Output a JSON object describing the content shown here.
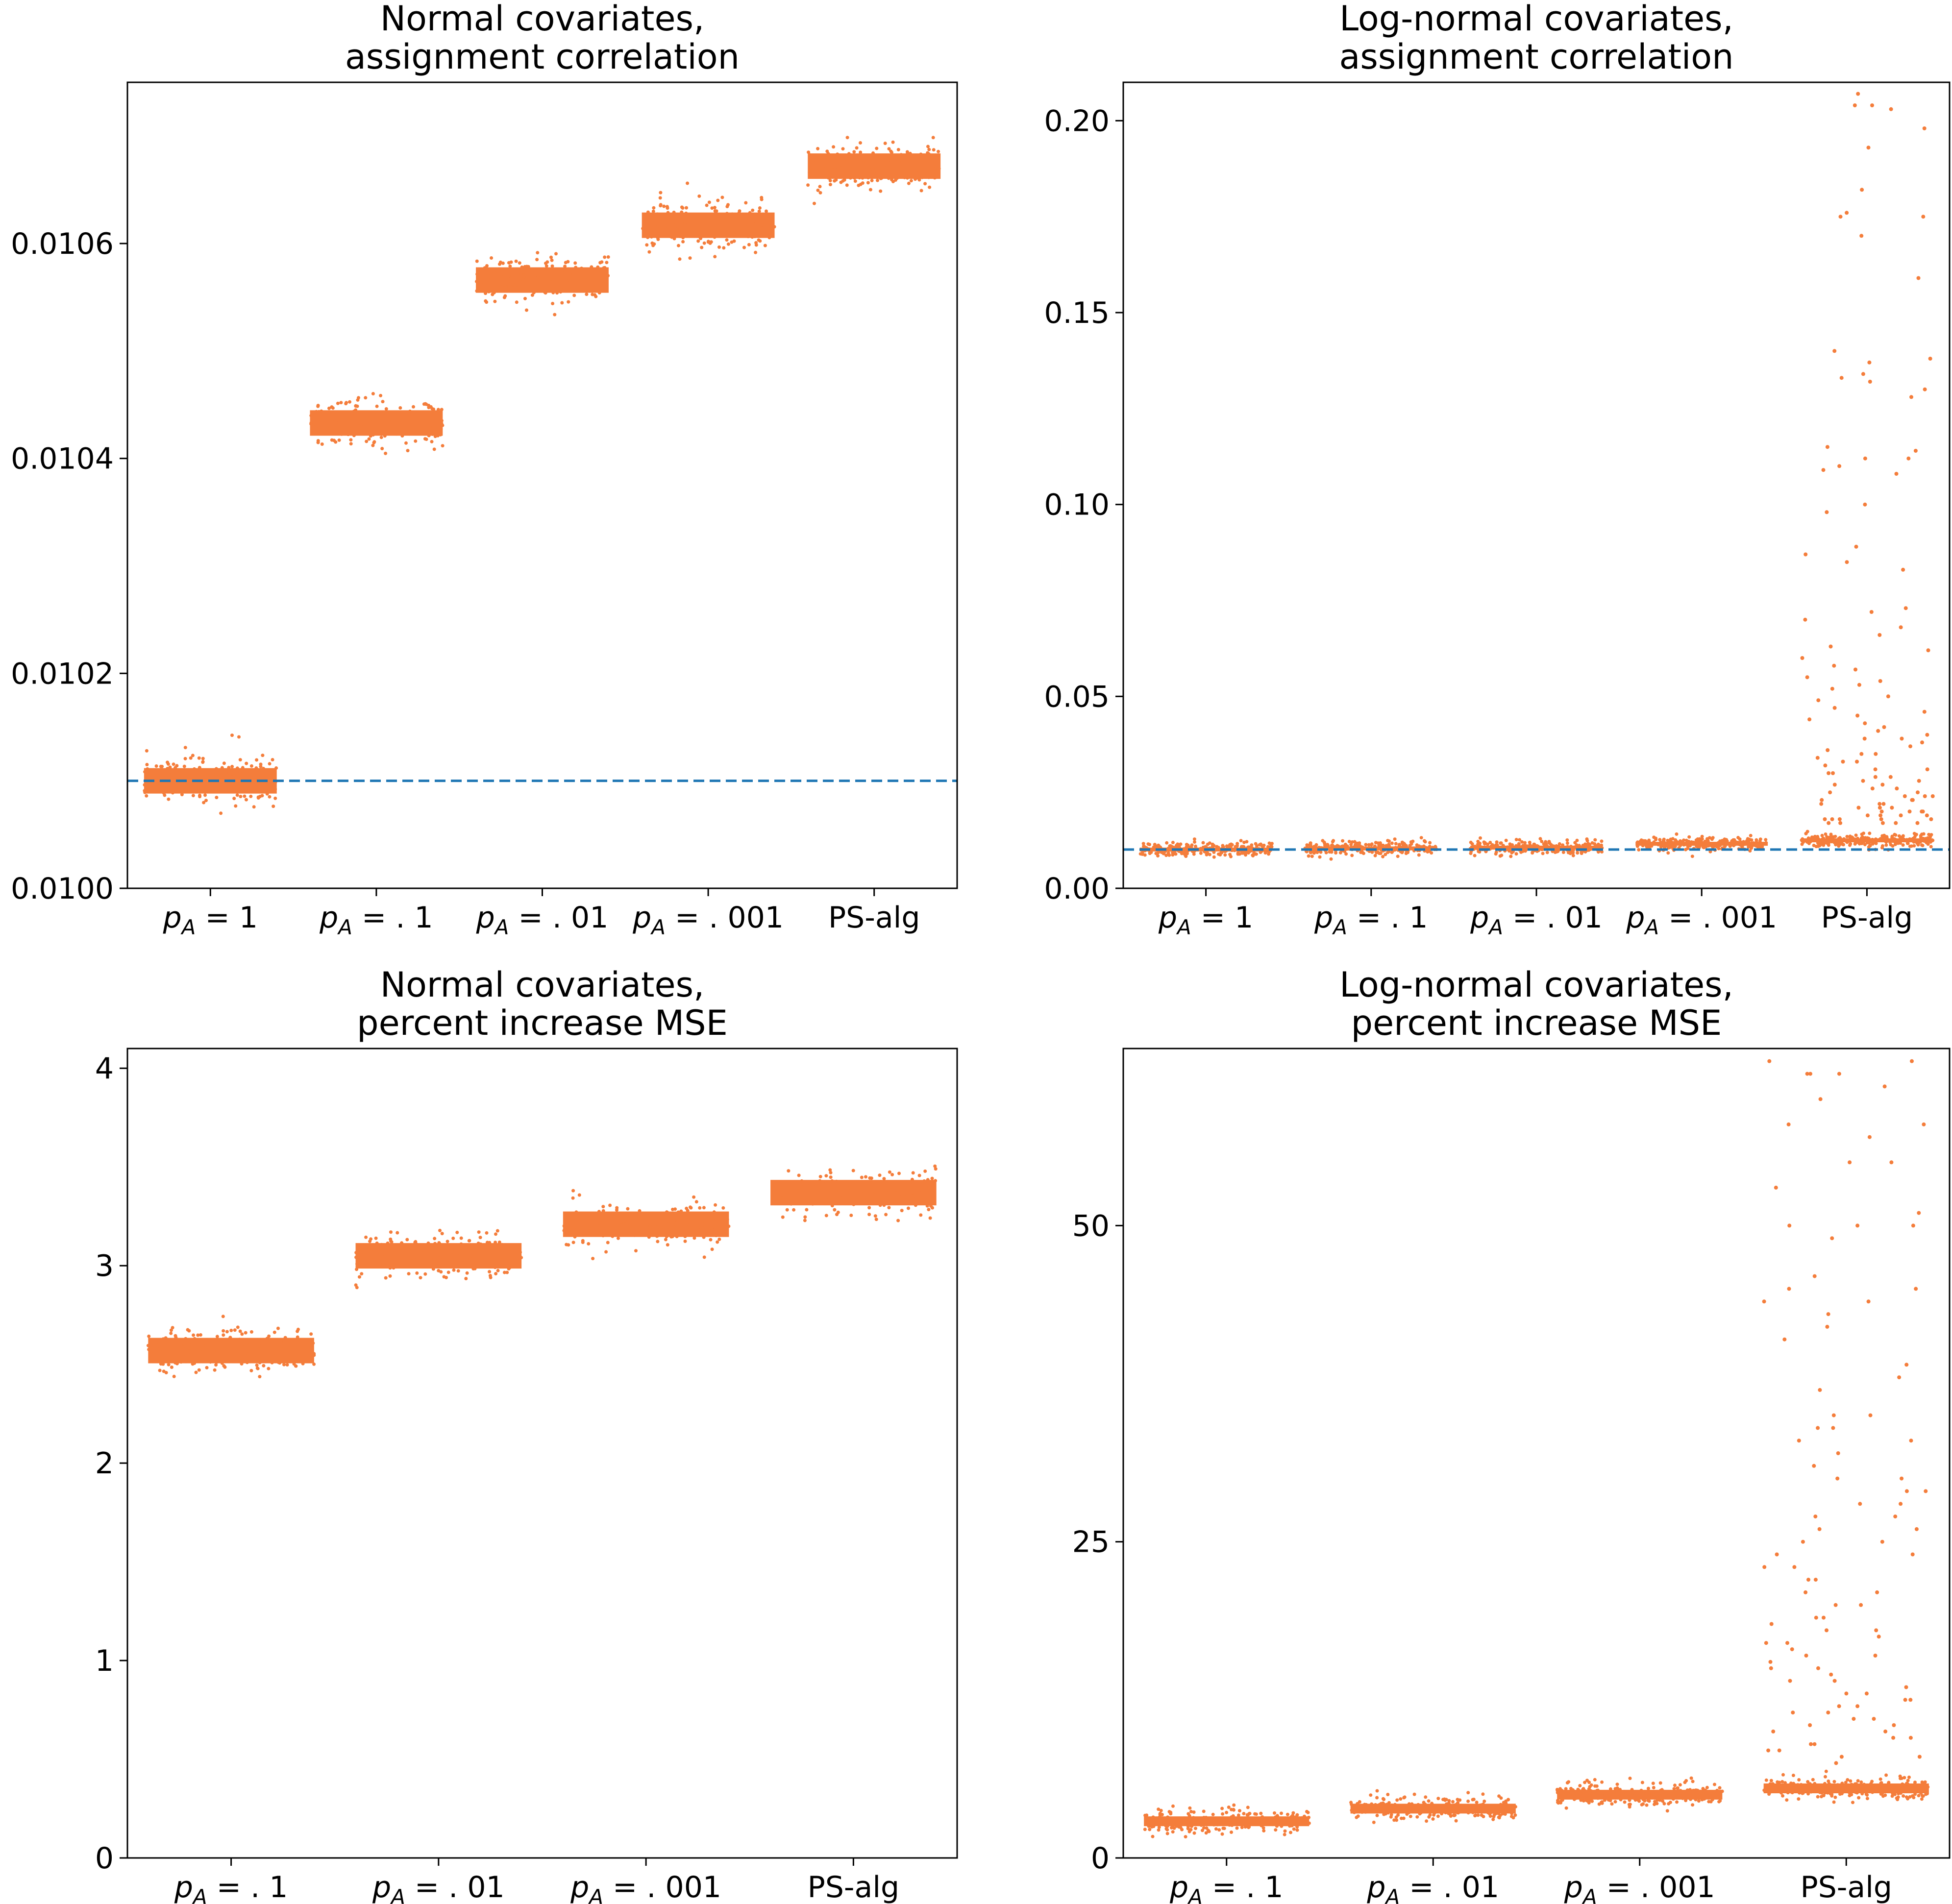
{
  "colors": {
    "points": "#f47d3b",
    "reference_line": "#1f77b4",
    "axis": "#000000"
  },
  "chart_data": [
    {
      "type": "scatter",
      "subtype": "strip",
      "title": [
        "Normal covariates,",
        "assignment correlation"
      ],
      "categories": [
        "p_A = 1",
        "p_A = .1",
        "p_A = .01",
        "p_A = .001",
        "PS-alg"
      ],
      "category_labels": [
        {
          "base": "p",
          "sub": "A",
          "rest": " = 1"
        },
        {
          "base": "p",
          "sub": "A",
          "rest": " = . 1"
        },
        {
          "base": "p",
          "sub": "A",
          "rest": " = . 01"
        },
        {
          "base": "p",
          "sub": "A",
          "rest": " = . 001"
        },
        {
          "base": "",
          "sub": "",
          "rest": "PS-alg"
        }
      ],
      "series": [
        {
          "name": "p_A = 1",
          "center": 0.0101,
          "spread": 4.5e-06,
          "outliers": []
        },
        {
          "name": "p_A = .1",
          "center": 0.010433,
          "spread": 4.5e-06,
          "outliers": []
        },
        {
          "name": "p_A = .01",
          "center": 0.010566,
          "spread": 4.5e-06,
          "outliers": []
        },
        {
          "name": "p_A = .001",
          "center": 0.010617,
          "spread": 4.5e-06,
          "outliers": []
        },
        {
          "name": "PS-alg",
          "center": 0.010672,
          "spread": 4.5e-06,
          "outliers": []
        }
      ],
      "ylim": [
        0.01,
        0.01075
      ],
      "yticks": [
        0.01,
        0.0102,
        0.0104,
        0.0106
      ],
      "ytick_labels": [
        "0.0100",
        "0.0102",
        "0.0104",
        "0.0106"
      ],
      "reference_line": 0.0101,
      "xlabel": "",
      "ylabel": ""
    },
    {
      "type": "scatter",
      "subtype": "strip",
      "title": [
        "Log-normal covariates,",
        "assignment correlation"
      ],
      "categories": [
        "p_A = 1",
        "p_A = .1",
        "p_A = .01",
        "p_A = .001",
        "PS-alg"
      ],
      "category_labels": [
        {
          "base": "p",
          "sub": "A",
          "rest": " = 1"
        },
        {
          "base": "p",
          "sub": "A",
          "rest": " = . 1"
        },
        {
          "base": "p",
          "sub": "A",
          "rest": " = . 01"
        },
        {
          "base": "p",
          "sub": "A",
          "rest": " = . 001"
        },
        {
          "base": "",
          "sub": "",
          "rest": "PS-alg"
        }
      ],
      "series": [
        {
          "name": "p_A = 1",
          "center": 0.0101,
          "spread": 0.0003,
          "outliers": []
        },
        {
          "name": "p_A = .1",
          "center": 0.0104,
          "spread": 0.0004,
          "outliers": []
        },
        {
          "name": "p_A = .01",
          "center": 0.0106,
          "spread": 0.0005,
          "outliers": []
        },
        {
          "name": "p_A = .001",
          "center": 0.0116,
          "spread": 0.0012,
          "outliers": []
        },
        {
          "name": "PS-alg",
          "center": 0.0125,
          "spread": 0.0022,
          "outliers": [
            0.204,
            0.204,
            0.203,
            0.207,
            0.198,
            0.193,
            0.182,
            0.176,
            0.175,
            0.175,
            0.17,
            0.159,
            0.14,
            0.138,
            0.134,
            0.137,
            0.133,
            0.13,
            0.132,
            0.128,
            0.115,
            0.114,
            0.112,
            0.112,
            0.11,
            0.109,
            0.108,
            0.1,
            0.098,
            0.089,
            0.087,
            0.085,
            0.083,
            0.073,
            0.072,
            0.07,
            0.068,
            0.066,
            0.063,
            0.062,
            0.06,
            0.058,
            0.057,
            0.055,
            0.054,
            0.053,
            0.052,
            0.05,
            0.049,
            0.047,
            0.046,
            0.045,
            0.044,
            0.043,
            0.042,
            0.041,
            0.04,
            0.039,
            0.039,
            0.038,
            0.037,
            0.036,
            0.035,
            0.035,
            0.034,
            0.033,
            0.033,
            0.032,
            0.031,
            0.031,
            0.03,
            0.03,
            0.029,
            0.029,
            0.028,
            0.028,
            0.027,
            0.027,
            0.026,
            0.026,
            0.025,
            0.025,
            0.024,
            0.024,
            0.024,
            0.023,
            0.023,
            0.023,
            0.022,
            0.022,
            0.022,
            0.021,
            0.021,
            0.021,
            0.02,
            0.02,
            0.02,
            0.02,
            0.019,
            0.019,
            0.019,
            0.019,
            0.018,
            0.018,
            0.018,
            0.018,
            0.018,
            0.017,
            0.017,
            0.017,
            0.017,
            0.017
          ]
        }
      ],
      "ylim": [
        0.0,
        0.21
      ],
      "yticks": [
        0.0,
        0.05,
        0.1,
        0.15,
        0.2
      ],
      "ytick_labels": [
        "0.00",
        "0.05",
        "0.10",
        "0.15",
        "0.20"
      ],
      "reference_line": 0.0101,
      "xlabel": "",
      "ylabel": ""
    },
    {
      "type": "scatter",
      "subtype": "strip",
      "title": [
        "Normal covariates,",
        "percent increase MSE"
      ],
      "categories": [
        "p_A = .1",
        "p_A = .01",
        "p_A = .001",
        "PS-alg"
      ],
      "category_labels": [
        {
          "base": "p",
          "sub": "A",
          "rest": " = . 1"
        },
        {
          "base": "p",
          "sub": "A",
          "rest": " = . 01"
        },
        {
          "base": "p",
          "sub": "A",
          "rest": " = . 001"
        },
        {
          "base": "",
          "sub": "",
          "rest": "PS-alg"
        }
      ],
      "series": [
        {
          "name": "p_A = .1",
          "center": 2.57,
          "spread": 0.025,
          "outliers": []
        },
        {
          "name": "p_A = .01",
          "center": 3.05,
          "spread": 0.025,
          "outliers": []
        },
        {
          "name": "p_A = .001",
          "center": 3.21,
          "spread": 0.025,
          "outliers": []
        },
        {
          "name": "PS-alg",
          "center": 3.37,
          "spread": 0.025,
          "outliers": []
        }
      ],
      "ylim": [
        0,
        4.1
      ],
      "yticks": [
        0,
        1,
        2,
        3,
        4
      ],
      "ytick_labels": [
        "0",
        "1",
        "2",
        "3",
        "4"
      ],
      "reference_line": null,
      "xlabel": "",
      "ylabel": ""
    },
    {
      "type": "scatter",
      "subtype": "strip",
      "title": [
        "Log-normal covariates,",
        "percent increase MSE"
      ],
      "categories": [
        "p_A = .1",
        "p_A = .01",
        "p_A = .001",
        "PS-alg"
      ],
      "category_labels": [
        {
          "base": "p",
          "sub": "A",
          "rest": " = . 1"
        },
        {
          "base": "p",
          "sub": "A",
          "rest": " = . 01"
        },
        {
          "base": "p",
          "sub": "A",
          "rest": " = . 001"
        },
        {
          "base": "",
          "sub": "",
          "rest": "PS-alg"
        }
      ],
      "series": [
        {
          "name": "p_A = .1",
          "center": 2.9,
          "spread": 0.15,
          "outliers": []
        },
        {
          "name": "p_A = .01",
          "center": 3.9,
          "spread": 0.5,
          "outliers": []
        },
        {
          "name": "p_A = .001",
          "center": 5.0,
          "spread": 1.1,
          "outliers": []
        },
        {
          "name": "PS-alg",
          "center": 5.5,
          "spread": 1.7,
          "outliers": [
            63.0,
            62.0,
            62.0,
            63.0,
            62.0,
            61.0,
            60.0,
            58.0,
            58.0,
            57.0,
            55.0,
            55.0,
            53.0,
            51.0,
            50.0,
            50.0,
            50.0,
            49.0,
            46.0,
            45.0,
            45.0,
            44.0,
            44.0,
            43.0,
            42.0,
            41.0,
            39.0,
            38.0,
            37.0,
            35.0,
            35.0,
            34.0,
            34.0,
            33.0,
            33.0,
            32.0,
            31.0,
            30.0,
            30.0,
            29.0,
            29.0,
            28.0,
            28.0,
            27.0,
            27.0,
            26.0,
            26.0,
            25.0,
            25.0,
            24.0,
            24.0,
            23.0,
            23.0,
            22.0,
            22.0,
            21.0,
            21.0,
            20.0,
            20.0,
            19.0,
            19.0,
            18.5,
            18.0,
            18.0,
            17.5,
            17.0,
            17.0,
            16.5,
            16.0,
            16.0,
            15.5,
            15.0,
            15.0,
            14.5,
            14.0,
            14.0,
            13.5,
            13.0,
            13.0,
            12.5,
            12.5,
            12.0,
            12.0,
            11.5,
            11.5,
            11.0,
            11.0,
            10.5,
            10.5,
            10.0,
            10.0,
            9.5,
            9.5,
            9.0,
            9.0,
            8.5,
            8.5,
            8.0,
            8.0,
            7.5
          ]
        }
      ],
      "ylim": [
        0,
        64
      ],
      "yticks": [
        0,
        25,
        50
      ],
      "ytick_labels": [
        "0",
        "25",
        "50"
      ],
      "reference_line": null,
      "xlabel": "",
      "ylabel": ""
    }
  ]
}
